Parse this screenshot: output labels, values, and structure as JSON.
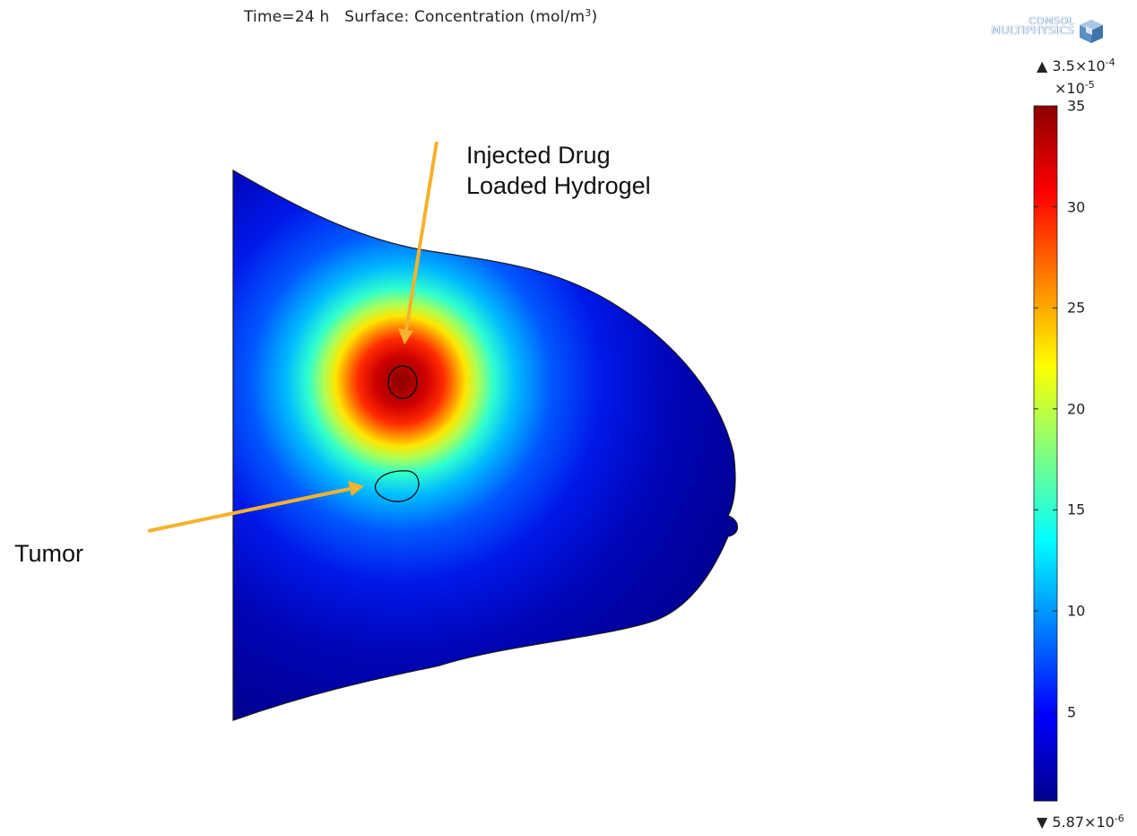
{
  "title": {
    "time": "Time=24 h",
    "surface": "Surface: Concentration (mol/m",
    "unit_exp": "3",
    "close": ")"
  },
  "logo": {
    "line1": "COMSOL",
    "line2": "MULTIPHYSICS",
    "icon": "comsol-cube-icon"
  },
  "annotations": {
    "hydrogel_line1": "Injected Drug",
    "hydrogel_line2": "Loaded Hydrogel",
    "tumor": "Tumor",
    "arrow_color": "#f6b22e"
  },
  "colorbar": {
    "max_marker": "▲",
    "max_mantissa": "3.5×10",
    "max_exp": "-4",
    "scale_prefix": "×10",
    "scale_exp": "-5",
    "min_marker": "▼",
    "min_mantissa": "5.87×10",
    "min_exp": "-6",
    "range": [
      0.587,
      35
    ],
    "ticks": [
      "35",
      "30",
      "25",
      "20",
      "15",
      "10",
      "5"
    ],
    "colormap": [
      "#00008c",
      "#0000ff",
      "#0080ff",
      "#00ffff",
      "#80ff80",
      "#ffff00",
      "#ff8000",
      "#ff0000",
      "#8b0000"
    ]
  }
}
